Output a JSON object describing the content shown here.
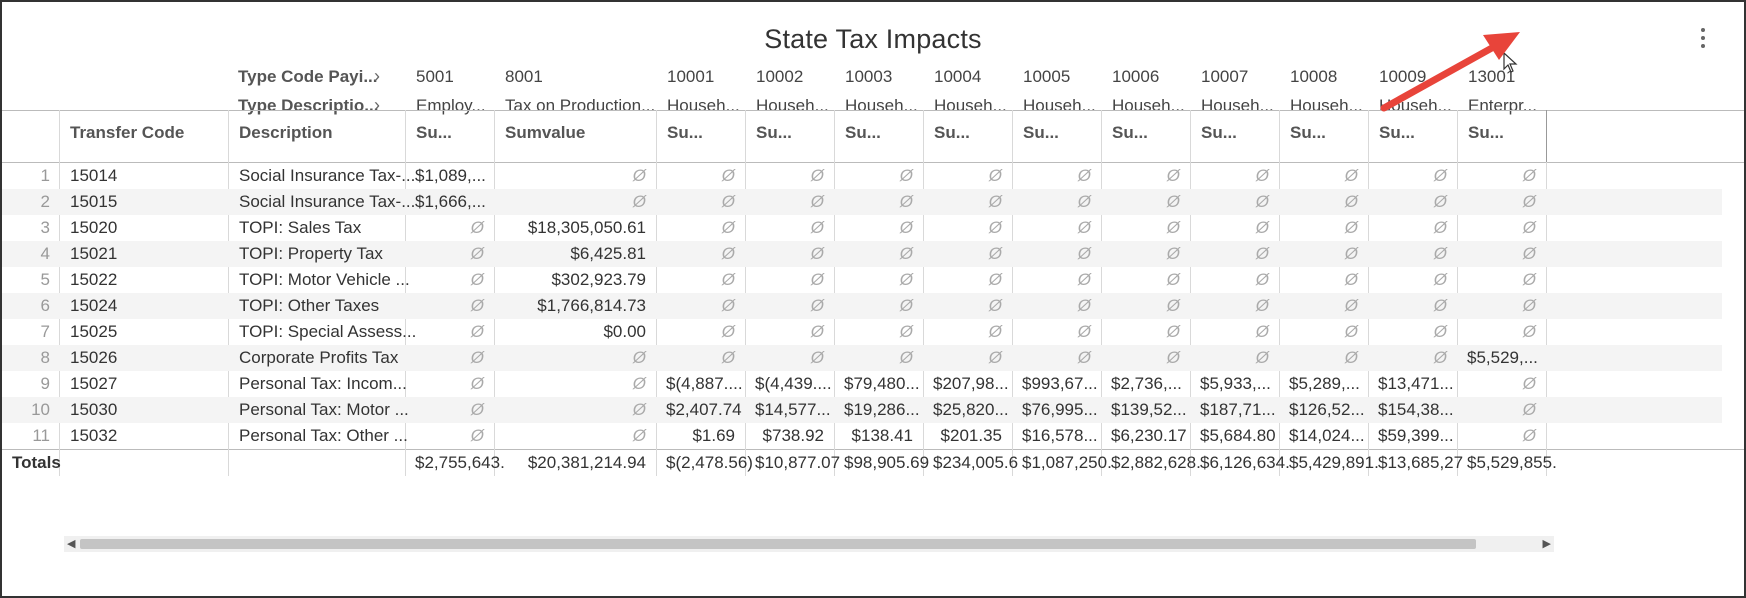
{
  "title": "State Tax Impacts",
  "menu_icon": "kebab-vertical-icon",
  "pivot_rows": [
    "Type Code Payi...",
    "Type Descriptio..."
  ],
  "row_headers": {
    "transfer_code": "Transfer Code",
    "description": "Description"
  },
  "columns": [
    {
      "code": "5001",
      "desc": "Employ...",
      "measure": "Su..."
    },
    {
      "code": "8001",
      "desc": "Tax on Production...",
      "measure": "Sumvalue"
    },
    {
      "code": "10001",
      "desc": "Househ...",
      "measure": "Su..."
    },
    {
      "code": "10002",
      "desc": "Househ...",
      "measure": "Su..."
    },
    {
      "code": "10003",
      "desc": "Househ...",
      "measure": "Su..."
    },
    {
      "code": "10004",
      "desc": "Househ...",
      "measure": "Su..."
    },
    {
      "code": "10005",
      "desc": "Househ...",
      "measure": "Su..."
    },
    {
      "code": "10006",
      "desc": "Househ...",
      "measure": "Su..."
    },
    {
      "code": "10007",
      "desc": "Househ...",
      "measure": "Su..."
    },
    {
      "code": "10008",
      "desc": "Househ...",
      "measure": "Su..."
    },
    {
      "code": "10009",
      "desc": "Househ...",
      "measure": "Su..."
    },
    {
      "code": "13001",
      "desc": "Enterpr...",
      "measure": "Su..."
    }
  ],
  "null_symbol": "Ø",
  "rows": [
    {
      "n": "1",
      "code": "15014",
      "desc": "Social Insurance Tax-...",
      "values": [
        "$1,089,...",
        null,
        null,
        null,
        null,
        null,
        null,
        null,
        null,
        null,
        null,
        null
      ]
    },
    {
      "n": "2",
      "code": "15015",
      "desc": "Social Insurance Tax-...",
      "values": [
        "$1,666,...",
        null,
        null,
        null,
        null,
        null,
        null,
        null,
        null,
        null,
        null,
        null
      ]
    },
    {
      "n": "3",
      "code": "15020",
      "desc": "TOPI: Sales Tax",
      "values": [
        null,
        "$18,305,050.61",
        null,
        null,
        null,
        null,
        null,
        null,
        null,
        null,
        null,
        null
      ]
    },
    {
      "n": "4",
      "code": "15021",
      "desc": "TOPI: Property Tax",
      "values": [
        null,
        "$6,425.81",
        null,
        null,
        null,
        null,
        null,
        null,
        null,
        null,
        null,
        null
      ]
    },
    {
      "n": "5",
      "code": "15022",
      "desc": "TOPI: Motor Vehicle ...",
      "values": [
        null,
        "$302,923.79",
        null,
        null,
        null,
        null,
        null,
        null,
        null,
        null,
        null,
        null
      ]
    },
    {
      "n": "6",
      "code": "15024",
      "desc": "TOPI: Other Taxes",
      "values": [
        null,
        "$1,766,814.73",
        null,
        null,
        null,
        null,
        null,
        null,
        null,
        null,
        null,
        null
      ]
    },
    {
      "n": "7",
      "code": "15025",
      "desc": "TOPI: Special Assess...",
      "values": [
        null,
        "$0.00",
        null,
        null,
        null,
        null,
        null,
        null,
        null,
        null,
        null,
        null
      ]
    },
    {
      "n": "8",
      "code": "15026",
      "desc": "Corporate Profits Tax",
      "values": [
        null,
        null,
        null,
        null,
        null,
        null,
        null,
        null,
        null,
        null,
        null,
        "$5,529,..."
      ]
    },
    {
      "n": "9",
      "code": "15027",
      "desc": "Personal Tax: Incom...",
      "values": [
        null,
        null,
        "$(4,887....",
        "$(4,439....",
        "$79,480...",
        "$207,98...",
        "$993,67...",
        "$2,736,...",
        "$5,933,...",
        "$5,289,...",
        "$13,471...",
        null
      ]
    },
    {
      "n": "10",
      "code": "15030",
      "desc": "Personal Tax: Motor ...",
      "values": [
        null,
        null,
        "$2,407.74",
        "$14,577...",
        "$19,286...",
        "$25,820...",
        "$76,995...",
        "$139,52...",
        "$187,71...",
        "$126,52...",
        "$154,38...",
        null
      ]
    },
    {
      "n": "11",
      "code": "15032",
      "desc": "Personal Tax: Other ...",
      "values": [
        null,
        null,
        "$1.69",
        "$738.92",
        "$138.41",
        "$201.35",
        "$16,578...",
        "$6,230.17",
        "$5,684.80",
        "$14,024...",
        "$59,399...",
        null
      ]
    }
  ],
  "totals_label": "Totals",
  "totals": [
    "$2,755,643.",
    "$20,381,214.94",
    "$(2,478.56)",
    "$10,877.07",
    "$98,905.69",
    "$234,005.6",
    "$1,087,250.",
    "$2,882,628.",
    "$6,126,634.",
    "$5,429,891.",
    "$13,685,27",
    "$5,529,855."
  ],
  "accent_arrow_color": "#e8443a"
}
